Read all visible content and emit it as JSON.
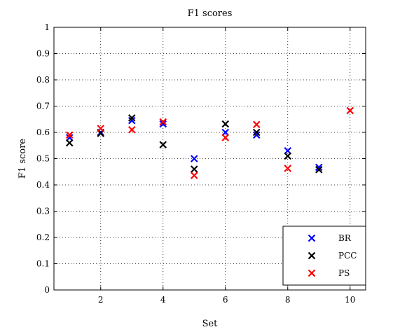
{
  "chart_data": {
    "type": "scatter",
    "title": "F1 scores",
    "xlabel": "Set",
    "ylabel": "F1 score",
    "xlim": [
      0.5,
      10.5
    ],
    "ylim": [
      0,
      1
    ],
    "xticks": [
      2,
      4,
      6,
      8,
      10
    ],
    "yticks": [
      0,
      0.1,
      0.2,
      0.3,
      0.4,
      0.5,
      0.6,
      0.7,
      0.8,
      0.9,
      1
    ],
    "grid": true,
    "legend_position": "bottom-right",
    "marker": "x",
    "series": [
      {
        "name": "BR",
        "color": "#0000ff",
        "x": [
          1,
          2,
          3,
          4,
          5,
          6,
          7,
          8,
          9
        ],
        "y": [
          0.58,
          0.6,
          0.645,
          0.632,
          0.5,
          0.6,
          0.59,
          0.53,
          0.467
        ]
      },
      {
        "name": "PCC",
        "color": "#000000",
        "x": [
          1,
          2,
          3,
          4,
          5,
          6,
          7,
          8,
          9
        ],
        "y": [
          0.56,
          0.596,
          0.655,
          0.553,
          0.46,
          0.632,
          0.6,
          0.51,
          0.458
        ]
      },
      {
        "name": "PS",
        "color": "#ff0000",
        "x": [
          1,
          2,
          3,
          4,
          5,
          6,
          7,
          8,
          10
        ],
        "y": [
          0.59,
          0.615,
          0.61,
          0.64,
          0.436,
          0.58,
          0.63,
          0.463,
          0.683
        ]
      }
    ]
  }
}
